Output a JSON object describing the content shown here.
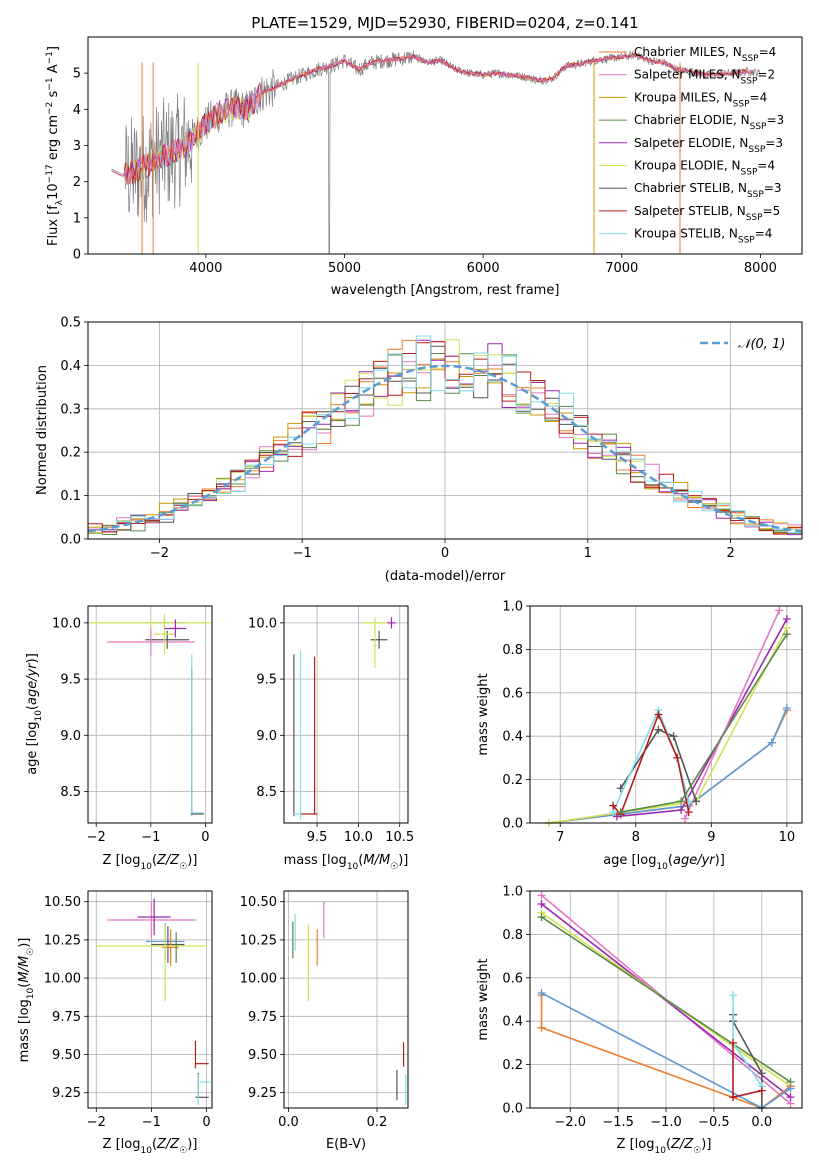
{
  "figure": {
    "title": "PLATE=1529, MJD=52930, FIBERID=0204, z=0.141"
  },
  "colors": {
    "data": "#808080",
    "chabrier_miles": "#ED7D31",
    "salpeter_miles": "#E377C2",
    "kroupa_miles": "#CC9900",
    "chabrier_elodie": "#5A8A4A",
    "salpeter_elodie": "#9C27B0",
    "kroupa_elodie": "#D4E157",
    "chabrier_stelib": "#555555",
    "salpeter_stelib": "#B71C1C",
    "kroupa_stelib": "#80DEEA",
    "gaussian": "#5B9BD5",
    "mass_lines": [
      "#5B9BD5",
      "#ED7D31",
      "#D4E157",
      "#9C27B0",
      "#E377C2",
      "#555555",
      "#B71C1C",
      "#80DEEA",
      "#5A8A4A"
    ]
  },
  "chart_data": [
    {
      "id": "spectrum",
      "type": "line",
      "xlabel": "wavelength [Angstrom, rest frame]",
      "ylabel": "Flux [f_λ10^-17 erg cm^-2 s^-1 A^-1]",
      "xlim": [
        3150,
        8300
      ],
      "ylim": [
        0,
        6
      ],
      "xticks": [
        4000,
        5000,
        6000,
        7000,
        8000
      ],
      "yticks": [
        0,
        1,
        2,
        3,
        4,
        5
      ],
      "grid": false,
      "legend_position": "top-right",
      "legend": [
        {
          "label": "Chabrier MILES, N",
          "sub": "SSP",
          "suffix": "=4",
          "color_key": "chabrier_miles"
        },
        {
          "label": "Salpeter MILES, N",
          "sub": "SSP",
          "suffix": "=2",
          "color_key": "salpeter_miles"
        },
        {
          "label": "Kroupa MILES, N",
          "sub": "SSP",
          "suffix": "=4",
          "color_key": "kroupa_miles"
        },
        {
          "label": "Chabrier ELODIE, N",
          "sub": "SSP",
          "suffix": "=3",
          "color_key": "chabrier_elodie"
        },
        {
          "label": "Salpeter ELODIE, N",
          "sub": "SSP",
          "suffix": "=3",
          "color_key": "salpeter_elodie"
        },
        {
          "label": "Kroupa ELODIE, N",
          "sub": "SSP",
          "suffix": "=4",
          "color_key": "kroupa_elodie"
        },
        {
          "label": "Chabrier STELIB, N",
          "sub": "SSP",
          "suffix": "=3",
          "color_key": "chabrier_stelib"
        },
        {
          "label": "Salpeter STELIB, N",
          "sub": "SSP",
          "suffix": "=5",
          "color_key": "salpeter_stelib"
        },
        {
          "label": "Kroupa STELIB, N",
          "sub": "SSP",
          "suffix": "=4",
          "color_key": "kroupa_stelib"
        }
      ],
      "continuum": [
        [
          3320,
          2.35
        ],
        [
          3400,
          2.2
        ],
        [
          3500,
          2.3
        ],
        [
          3600,
          2.5
        ],
        [
          3700,
          2.75
        ],
        [
          3800,
          2.85
        ],
        [
          3900,
          3.2
        ],
        [
          4000,
          3.6
        ],
        [
          4100,
          3.9
        ],
        [
          4200,
          4.05
        ],
        [
          4300,
          4.0
        ],
        [
          4400,
          4.45
        ],
        [
          4500,
          4.6
        ],
        [
          4600,
          4.8
        ],
        [
          4700,
          4.95
        ],
        [
          4800,
          5.1
        ],
        [
          4900,
          5.2
        ],
        [
          5000,
          5.35
        ],
        [
          5100,
          5.1
        ],
        [
          5200,
          5.3
        ],
        [
          5300,
          5.35
        ],
        [
          5400,
          5.4
        ],
        [
          5500,
          5.45
        ],
        [
          5600,
          5.3
        ],
        [
          5700,
          5.35
        ],
        [
          5800,
          5.1
        ],
        [
          5900,
          5.0
        ],
        [
          6000,
          4.95
        ],
        [
          6100,
          5.0
        ],
        [
          6200,
          4.95
        ],
        [
          6300,
          4.9
        ],
        [
          6400,
          4.8
        ],
        [
          6500,
          4.85
        ],
        [
          6600,
          5.2
        ],
        [
          6700,
          5.25
        ],
        [
          6800,
          5.35
        ],
        [
          6900,
          5.4
        ],
        [
          7000,
          5.45
        ],
        [
          7100,
          5.5
        ],
        [
          7200,
          5.35
        ],
        [
          7300,
          5.3
        ],
        [
          7400,
          5.1
        ],
        [
          7500,
          5.05
        ],
        [
          7600,
          4.95
        ],
        [
          7800,
          5.0
        ],
        [
          7900,
          5.05
        ],
        [
          8000,
          5.0
        ]
      ]
    },
    {
      "id": "residuals",
      "type": "histogram",
      "xlabel": "(data-model)/error",
      "ylabel": "Normed distribution",
      "xlim": [
        -2.5,
        2.5
      ],
      "ylim": [
        0,
        0.5
      ],
      "xticks": [
        -2,
        -1,
        0,
        1,
        2
      ],
      "yticks": [
        0.0,
        0.1,
        0.2,
        0.3,
        0.4,
        0.5
      ],
      "grid": true,
      "legend_position": "top-right",
      "legend_label": "N(0, 1)",
      "bin_width": 0.1
    },
    {
      "id": "age_vs_z",
      "type": "errorbar",
      "xlabel": "Z [log10(Z/Z☉)]",
      "ylabel": "age [log10(age/yr)]",
      "xlim": [
        -2.15,
        0.12
      ],
      "ylim": [
        8.22,
        10.15
      ],
      "xticks": [
        -2,
        -1,
        0
      ],
      "yticks": [
        8.5,
        9.0,
        9.5,
        10.0
      ],
      "grid": true,
      "points": [
        {
          "x": -0.75,
          "y": 10.0,
          "xerr": 0.4,
          "yerr": 0.05,
          "color_key": "chabrier_elodie"
        },
        {
          "x": -0.7,
          "y": 9.85,
          "xerr": 0.4,
          "yerr": 0.08,
          "color_key": "chabrier_stelib"
        },
        {
          "x": -1.0,
          "y": 9.83,
          "xerr": 0.8,
          "yerr": 0.12,
          "color_key": "salpeter_miles"
        },
        {
          "x": -1.0,
          "y": 10.0,
          "xerr": 1.1,
          "yerr": 0.04,
          "color_key": "kroupa_elodie"
        },
        {
          "x": -0.75,
          "y": 9.9,
          "xerr": 0.2,
          "yerr": 0.18,
          "color_key": "kroupa_elodie"
        },
        {
          "x": -0.55,
          "y": 9.95,
          "xerr": 0.2,
          "yerr": 0.08,
          "color_key": "salpeter_elodie"
        },
        {
          "x": -0.25,
          "y": 8.95,
          "xerr": 0.0,
          "yerr": 0.65,
          "color_key": "chabrier_stelib"
        },
        {
          "x": -0.25,
          "y": 9.0,
          "xerr": 0.0,
          "yerr": 0.72,
          "color_key": "kroupa_stelib"
        },
        {
          "x": -0.15,
          "y": 8.3,
          "xerr": 0.12,
          "yerr": 0.0,
          "color_key": "chabrier_stelib"
        },
        {
          "x": -0.15,
          "y": 8.31,
          "xerr": 0.12,
          "yerr": 0.0,
          "color_key": "kroupa_stelib"
        }
      ]
    },
    {
      "id": "age_vs_mass",
      "type": "errorbar",
      "xlabel": "mass [log10(M/M☉)]",
      "ylabel": "",
      "xlim": [
        9.1,
        10.6
      ],
      "ylim": [
        8.22,
        10.15
      ],
      "xticks": [
        9.5,
        10.0,
        10.5
      ],
      "yticks": [
        8.5,
        9.0,
        9.5,
        10.0
      ],
      "grid": true,
      "points": [
        {
          "x": 10.2,
          "y": 10.0,
          "xerr": 0.15,
          "yerr": 0.05,
          "color_key": "kroupa_elodie"
        },
        {
          "x": 10.4,
          "y": 10.0,
          "xerr": 0.05,
          "yerr": 0.05,
          "color_key": "salpeter_elodie"
        },
        {
          "x": 10.25,
          "y": 9.85,
          "xerr": 0.1,
          "yerr": 0.08,
          "color_key": "chabrier_stelib"
        },
        {
          "x": 10.2,
          "y": 9.8,
          "xerr": 0.02,
          "yerr": 0.2,
          "color_key": "kroupa_elodie"
        },
        {
          "x": 9.22,
          "y": 9.0,
          "xerr": 0.0,
          "yerr": 0.72,
          "color_key": "chabrier_stelib"
        },
        {
          "x": 9.3,
          "y": 9.0,
          "xerr": 0.0,
          "yerr": 0.75,
          "color_key": "kroupa_stelib"
        },
        {
          "x": 9.47,
          "y": 9.0,
          "xerr": 0.0,
          "yerr": 0.7,
          "color_key": "salpeter_stelib"
        },
        {
          "x": 9.4,
          "y": 8.3,
          "xerr": 0.1,
          "yerr": 0.0,
          "color_key": "salpeter_stelib"
        },
        {
          "x": 9.26,
          "y": 8.3,
          "xerr": 0.05,
          "yerr": 0.0,
          "color_key": "kroupa_stelib"
        }
      ]
    },
    {
      "id": "massweight_vs_age",
      "type": "line",
      "xlabel": "age [log10(age/yr)]",
      "ylabel": "mass weight",
      "xlim": [
        6.6,
        10.2
      ],
      "ylim": [
        0,
        1.0
      ],
      "xticks": [
        7,
        8,
        9,
        10
      ],
      "yticks": [
        0.0,
        0.2,
        0.4,
        0.6,
        0.8,
        1.0
      ],
      "grid": true,
      "series": [
        {
          "color_key": "chabrier_miles",
          "points": [
            [
              6.85,
              0.0
            ],
            [
              8.7,
              0.08
            ],
            [
              9.8,
              0.37
            ],
            [
              10.0,
              0.52
            ]
          ]
        },
        {
          "color_key": "gaussian",
          "points": [
            [
              6.85,
              0.0
            ],
            [
              8.7,
              0.08
            ],
            [
              9.8,
              0.37
            ],
            [
              10.0,
              0.53
            ]
          ]
        },
        {
          "color_key": "kroupa_elodie",
          "points": [
            [
              6.85,
              0.0
            ],
            [
              8.8,
              0.1
            ],
            [
              10.0,
              0.9
            ]
          ]
        },
        {
          "color_key": "salpeter_elodie",
          "points": [
            [
              7.75,
              0.03
            ],
            [
              8.6,
              0.06
            ],
            [
              10.0,
              0.94
            ]
          ]
        },
        {
          "color_key": "salpeter_miles",
          "points": [
            [
              8.65,
              0.02
            ],
            [
              9.9,
              0.98
            ]
          ]
        },
        {
          "color_key": "chabrier_stelib",
          "points": [
            [
              7.8,
              0.16
            ],
            [
              8.3,
              0.43
            ],
            [
              8.5,
              0.4
            ],
            [
              8.8,
              0.1
            ]
          ]
        },
        {
          "color_key": "kroupa_stelib",
          "points": [
            [
              7.7,
              0.05
            ],
            [
              8.3,
              0.52
            ],
            [
              8.55,
              0.3
            ],
            [
              8.7,
              0.1
            ]
          ]
        },
        {
          "color_key": "salpeter_stelib",
          "points": [
            [
              7.7,
              0.08
            ],
            [
              7.8,
              0.04
            ],
            [
              8.3,
              0.5
            ],
            [
              8.55,
              0.3
            ],
            [
              8.7,
              0.05
            ]
          ]
        },
        {
          "color_key": "chabrier_elodie",
          "points": [
            [
              7.8,
              0.05
            ],
            [
              8.6,
              0.1
            ],
            [
              10.0,
              0.87
            ]
          ]
        }
      ]
    },
    {
      "id": "mass_vs_z",
      "type": "errorbar",
      "xlabel": "Z [log10(Z/Z☉)]",
      "ylabel": "mass [log10(M/M☉)]",
      "xlim": [
        -2.15,
        0.1
      ],
      "ylim": [
        9.15,
        10.57
      ],
      "xticks": [
        -2,
        -1,
        0
      ],
      "yticks": [
        9.25,
        9.5,
        9.75,
        10.0,
        10.25,
        10.5
      ],
      "grid": true,
      "points": [
        {
          "x": -1.0,
          "y": 10.38,
          "xerr": 0.8,
          "yerr": 0.12,
          "color_key": "salpeter_miles"
        },
        {
          "x": -0.95,
          "y": 10.4,
          "xerr": 0.3,
          "yerr": 0.12,
          "color_key": "salpeter_elodie"
        },
        {
          "x": -0.75,
          "y": 10.24,
          "xerr": 0.35,
          "yerr": 0.12,
          "color_key": "gaussian"
        },
        {
          "x": -0.7,
          "y": 10.22,
          "xerr": 0.3,
          "yerr": 0.12,
          "color_key": "chabrier_stelib"
        },
        {
          "x": -0.65,
          "y": 10.2,
          "xerr": 0.15,
          "yerr": 0.12,
          "color_key": "chabrier_miles"
        },
        {
          "x": -1.0,
          "y": 10.21,
          "xerr": 1.0,
          "yerr": 0.0,
          "color_key": "kroupa_elodie"
        },
        {
          "x": -0.75,
          "y": 10.1,
          "xerr": 0.0,
          "yerr": 0.25,
          "color_key": "kroupa_elodie"
        },
        {
          "x": -0.55,
          "y": 10.2,
          "xerr": 0.0,
          "yerr": 0.1,
          "color_key": "chabrier_elodie"
        },
        {
          "x": -0.2,
          "y": 9.5,
          "xerr": 0.0,
          "yerr": 0.09,
          "color_key": "salpeter_stelib"
        },
        {
          "x": -0.08,
          "y": 9.44,
          "xerr": 0.12,
          "yerr": 0.0,
          "color_key": "salpeter_stelib"
        },
        {
          "x": -0.15,
          "y": 9.3,
          "xerr": 0.0,
          "yerr": 0.08,
          "color_key": "chabrier_stelib"
        },
        {
          "x": -0.08,
          "y": 9.22,
          "xerr": 0.12,
          "yerr": 0.0,
          "color_key": "chabrier_stelib"
        },
        {
          "x": -0.02,
          "y": 9.32,
          "xerr": 0.1,
          "yerr": 0.0,
          "color_key": "kroupa_stelib"
        },
        {
          "x": -0.15,
          "y": 9.27,
          "xerr": 0.0,
          "yerr": 0.1,
          "color_key": "kroupa_stelib"
        }
      ]
    },
    {
      "id": "mass_vs_ebv",
      "type": "errorbar",
      "xlabel": "E(B-V)",
      "ylabel": "",
      "xlim": [
        -0.01,
        0.27
      ],
      "ylim": [
        9.15,
        10.57
      ],
      "xticks": [
        0.0,
        0.2
      ],
      "yticks": [
        9.25,
        9.5,
        9.75,
        10.0,
        10.25,
        10.5
      ],
      "grid": true,
      "points": [
        {
          "x": 0.01,
          "y": 10.25,
          "xerr": 0.0,
          "yerr": 0.12,
          "color_key": "chabrier_elodie"
        },
        {
          "x": 0.015,
          "y": 10.3,
          "xerr": 0.0,
          "yerr": 0.12,
          "color_key": "kroupa_stelib"
        },
        {
          "x": 0.045,
          "y": 10.1,
          "xerr": 0.0,
          "yerr": 0.25,
          "color_key": "kroupa_elodie"
        },
        {
          "x": 0.065,
          "y": 10.2,
          "xerr": 0.0,
          "yerr": 0.12,
          "color_key": "chabrier_miles"
        },
        {
          "x": 0.08,
          "y": 10.38,
          "xerr": 0.0,
          "yerr": 0.12,
          "color_key": "salpeter_miles"
        },
        {
          "x": 0.245,
          "y": 9.3,
          "xerr": 0.0,
          "yerr": 0.1,
          "color_key": "chabrier_stelib"
        },
        {
          "x": 0.26,
          "y": 9.5,
          "xerr": 0.0,
          "yerr": 0.08,
          "color_key": "salpeter_stelib"
        },
        {
          "x": 0.265,
          "y": 9.27,
          "xerr": 0.0,
          "yerr": 0.1,
          "color_key": "kroupa_stelib"
        }
      ]
    },
    {
      "id": "massweight_vs_z",
      "type": "line",
      "xlabel": "Z [log10(Z/Z☉)]",
      "ylabel": "mass weight",
      "xlim": [
        -2.42,
        0.42
      ],
      "ylim": [
        0,
        1.0
      ],
      "xticks": [
        -2.0,
        -1.5,
        -1.0,
        -0.5,
        0.0
      ],
      "yticks": [
        0.0,
        0.2,
        0.4,
        0.6,
        0.8,
        1.0
      ],
      "grid": true,
      "series": [
        {
          "color_key": "salpeter_miles",
          "points": [
            [
              -2.3,
              0.98
            ],
            [
              0.3,
              0.02
            ]
          ]
        },
        {
          "color_key": "salpeter_elodie",
          "points": [
            [
              -2.3,
              0.94
            ],
            [
              0.3,
              0.05
            ]
          ]
        },
        {
          "color_key": "kroupa_elodie",
          "points": [
            [
              -2.3,
              0.9
            ],
            [
              0.3,
              0.1
            ]
          ]
        },
        {
          "color_key": "chabrier_elodie",
          "points": [
            [
              -2.3,
              0.88
            ],
            [
              0.3,
              0.12
            ]
          ]
        },
        {
          "color_key": "chabrier_miles",
          "points": [
            [
              -2.3,
              0.52
            ],
            [
              -2.3,
              0.37
            ],
            [
              0.0,
              0.0
            ],
            [
              0.3,
              0.1
            ]
          ]
        },
        {
          "color_key": "gaussian",
          "points": [
            [
              -2.3,
              0.53
            ],
            [
              0.0,
              0.0
            ],
            [
              0.3,
              0.09
            ]
          ]
        },
        {
          "color_key": "chabrier_stelib",
          "points": [
            [
              -0.3,
              0.43
            ],
            [
              -0.3,
              0.4
            ],
            [
              0.0,
              0.16
            ],
            [
              0.0,
              0.0
            ]
          ]
        },
        {
          "color_key": "kroupa_stelib",
          "points": [
            [
              -0.3,
              0.52
            ],
            [
              -0.3,
              0.3
            ],
            [
              0.0,
              0.1
            ]
          ]
        },
        {
          "color_key": "salpeter_stelib",
          "points": [
            [
              -0.3,
              0.3
            ],
            [
              -0.3,
              0.05
            ],
            [
              0.0,
              0.08
            ]
          ]
        }
      ]
    }
  ]
}
